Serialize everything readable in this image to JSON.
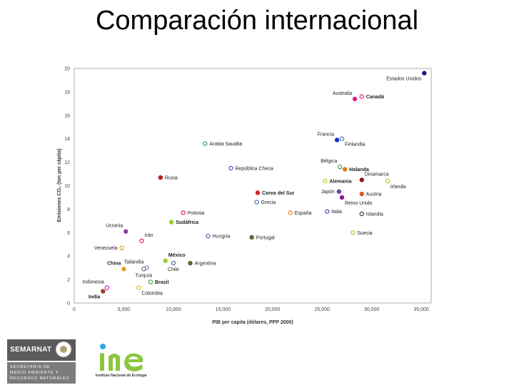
{
  "slide": {
    "title": "Comparación internacional"
  },
  "chart_data": {
    "type": "scatter",
    "title": "",
    "xlabel": "PIB per capita (dólares, PPP 2000)",
    "ylabel": "Emisiones CO₂ (ton per cápita)",
    "xlim": [
      0,
      36000
    ],
    "ylim": [
      0,
      20
    ],
    "xticks": [
      0,
      5000,
      10000,
      15000,
      20000,
      25000,
      30000,
      35000
    ],
    "xtick_labels": [
      "0",
      "5,000",
      "10,000",
      "15,000",
      "20,000",
      "25,000",
      "30,000",
      "35,000"
    ],
    "yticks": [
      0,
      2,
      4,
      6,
      8,
      10,
      12,
      14,
      16,
      18,
      20
    ],
    "ytick_labels": [
      "0",
      "2",
      "4",
      "6",
      "8",
      "10",
      "12",
      "14",
      "16",
      "18",
      "20"
    ],
    "grid": true,
    "points": [
      {
        "label": "Estados Unidos",
        "x": 35300,
        "y": 19.6,
        "color": "#1a1a8c",
        "filled": true,
        "bold": false,
        "label_pos": "below-left"
      },
      {
        "label": "Australia",
        "x": 28300,
        "y": 17.4,
        "color": "#e01e8c",
        "filled": true,
        "bold": false,
        "label_pos": "above-left"
      },
      {
        "label": "Canadá",
        "x": 29000,
        "y": 17.6,
        "color": "#e01e8c",
        "filled": false,
        "bold": true,
        "label_pos": "right"
      },
      {
        "label": "Francia",
        "x": 26500,
        "y": 13.9,
        "color": "#1a2fbf",
        "filled": true,
        "bold": false,
        "label_pos": "above-left"
      },
      {
        "label": "Finlandia",
        "x": 27000,
        "y": 14.0,
        "color": "#4a6fb0",
        "filled": false,
        "bold": false,
        "label_pos": "below-right"
      },
      {
        "label": "Arabia Saudita",
        "x": 13200,
        "y": 13.6,
        "color": "#3aa04a",
        "filled": false,
        "bold": false,
        "label_pos": "right"
      },
      {
        "label": "República Checa",
        "x": 15800,
        "y": 11.5,
        "color": "#7a3fb0",
        "filled": false,
        "bold": false,
        "label_pos": "right"
      },
      {
        "label": "Bélgica",
        "x": 26800,
        "y": 11.6,
        "color": "#3aa04a",
        "filled": false,
        "bold": false,
        "label_pos": "above-left"
      },
      {
        "label": "Holanda",
        "x": 27300,
        "y": 11.4,
        "color": "#e07a1e",
        "filled": true,
        "bold": true,
        "label_pos": "right"
      },
      {
        "label": "Dinamarca",
        "x": 29000,
        "y": 10.5,
        "color": "#8c1a1a",
        "filled": true,
        "bold": false,
        "label_pos": "above-right"
      },
      {
        "label": "Irlanda",
        "x": 31600,
        "y": 10.4,
        "color": "#9acd32",
        "filled": false,
        "bold": false,
        "label_pos": "below-right"
      },
      {
        "label": "Alemania",
        "x": 25300,
        "y": 10.4,
        "color": "#c8c800",
        "filled": false,
        "bold": true,
        "label_pos": "right"
      },
      {
        "label": "Rusia",
        "x": 8700,
        "y": 10.7,
        "color": "#c01e1e",
        "filled": true,
        "bold": false,
        "label_pos": "right"
      },
      {
        "label": "Corea del Sur",
        "x": 18500,
        "y": 9.4,
        "color": "#e01e1e",
        "filled": true,
        "bold": true,
        "label_pos": "right"
      },
      {
        "label": "Japón",
        "x": 26700,
        "y": 9.5,
        "color": "#6a3fa0",
        "filled": true,
        "bold": false,
        "label_pos": "left"
      },
      {
        "label": "Austria",
        "x": 29000,
        "y": 9.3,
        "color": "#e05a1e",
        "filled": true,
        "bold": false,
        "label_pos": "right"
      },
      {
        "label": "Grecia",
        "x": 18400,
        "y": 8.6,
        "color": "#4a6fb0",
        "filled": false,
        "bold": false,
        "label_pos": "right"
      },
      {
        "label": "Reino Unido",
        "x": 27000,
        "y": 9.0,
        "color": "#8c1a8c",
        "filled": true,
        "bold": false,
        "label_pos": "below-right"
      },
      {
        "label": "Polonia",
        "x": 11000,
        "y": 7.7,
        "color": "#e01e5a",
        "filled": false,
        "bold": false,
        "label_pos": "right"
      },
      {
        "label": "España",
        "x": 21800,
        "y": 7.7,
        "color": "#e08a1e",
        "filled": false,
        "bold": false,
        "label_pos": "right"
      },
      {
        "label": "Italia",
        "x": 25500,
        "y": 7.8,
        "color": "#4a4ab0",
        "filled": false,
        "bold": false,
        "label_pos": "right"
      },
      {
        "label": "Islandia",
        "x": 29000,
        "y": 7.6,
        "color": "#333333",
        "filled": false,
        "bold": false,
        "label_pos": "right"
      },
      {
        "label": "Sudáfrica",
        "x": 9800,
        "y": 6.9,
        "color": "#9acd32",
        "filled": true,
        "bold": true,
        "label_pos": "right"
      },
      {
        "label": "Ucrania",
        "x": 5200,
        "y": 6.1,
        "color": "#8c3fa0",
        "filled": true,
        "bold": false,
        "label_pos": "above-left"
      },
      {
        "label": "Irán",
        "x": 6800,
        "y": 5.3,
        "color": "#e01e5a",
        "filled": false,
        "bold": false,
        "label_pos": "above-right"
      },
      {
        "label": "Hungría",
        "x": 13500,
        "y": 5.7,
        "color": "#4a6fb0",
        "filled": false,
        "bold": false,
        "label_pos": "right"
      },
      {
        "label": "Portugal",
        "x": 17900,
        "y": 5.6,
        "color": "#556b2f",
        "filled": true,
        "bold": false,
        "label_pos": "right"
      },
      {
        "label": "Suecia",
        "x": 28100,
        "y": 6.0,
        "color": "#9acd32",
        "filled": false,
        "bold": false,
        "label_pos": "right"
      },
      {
        "label": "Venezuela",
        "x": 4800,
        "y": 4.7,
        "color": "#e0a01e",
        "filled": false,
        "bold": false,
        "label_pos": "left"
      },
      {
        "label": "México",
        "x": 9200,
        "y": 3.6,
        "color": "#9acd32",
        "filled": true,
        "bold": true,
        "label_pos": "above-right"
      },
      {
        "label": "Tailandia",
        "x": 7300,
        "y": 3.0,
        "color": "#7a7ac0",
        "filled": false,
        "bold": false,
        "label_pos": "above-left"
      },
      {
        "label": "Chile",
        "x": 10000,
        "y": 3.4,
        "color": "#4a6fb0",
        "filled": false,
        "bold": false,
        "label_pos": "below"
      },
      {
        "label": "Argentina",
        "x": 11700,
        "y": 3.4,
        "color": "#556b2f",
        "filled": true,
        "bold": false,
        "label_pos": "right"
      },
      {
        "label": "China",
        "x": 5000,
        "y": 2.9,
        "color": "#e0a01e",
        "filled": true,
        "bold": true,
        "label_pos": "above-left"
      },
      {
        "label": "Turquía",
        "x": 7000,
        "y": 2.9,
        "color": "#6a6a6a",
        "filled": false,
        "bold": false,
        "label_pos": "below"
      },
      {
        "label": "Brasil",
        "x": 7700,
        "y": 1.8,
        "color": "#3aa04a",
        "filled": false,
        "bold": true,
        "label_pos": "right"
      },
      {
        "label": "Indonesia",
        "x": 3300,
        "y": 1.3,
        "color": "#c01ec0",
        "filled": false,
        "bold": false,
        "label_pos": "above-left"
      },
      {
        "label": "Colombia",
        "x": 6500,
        "y": 1.3,
        "color": "#e0c01e",
        "filled": false,
        "bold": false,
        "label_pos": "below-right"
      },
      {
        "label": "India",
        "x": 2900,
        "y": 1.0,
        "color": "#8c4a1e",
        "filled": true,
        "bold": true,
        "label_pos": "below-left"
      }
    ]
  },
  "footer": {
    "semarnat": {
      "name": "SEMARNAT",
      "line1": "SECRETARÍA DE",
      "line2": "MEDIO AMBIENTE Y",
      "line3": "RECURSOS NATURALES",
      "box_color": "#5b5b5b"
    },
    "ine": {
      "caption": "Instituto Nacional de Ecología",
      "green": "#8cc63f",
      "blue": "#29abe2"
    }
  }
}
